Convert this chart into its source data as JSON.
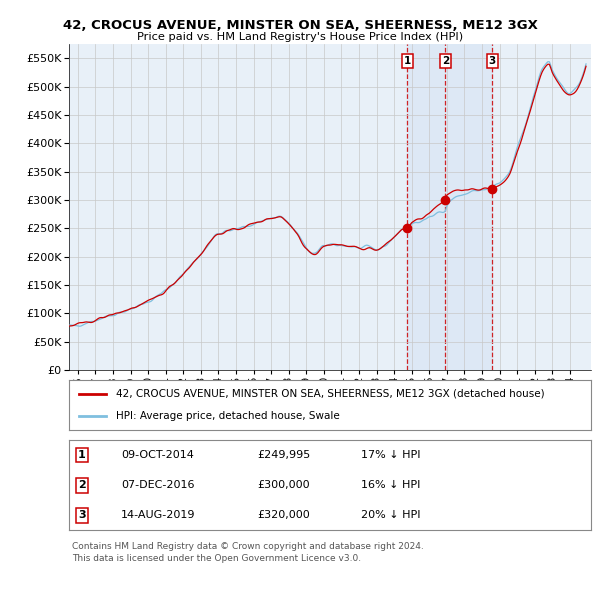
{
  "title": "42, CROCUS AVENUE, MINSTER ON SEA, SHEERNESS, ME12 3GX",
  "subtitle": "Price paid vs. HM Land Registry's House Price Index (HPI)",
  "legend_line1": "42, CROCUS AVENUE, MINSTER ON SEA, SHEERNESS, ME12 3GX (detached house)",
  "legend_line2": "HPI: Average price, detached house, Swale",
  "footer": "Contains HM Land Registry data © Crown copyright and database right 2024.\nThis data is licensed under the Open Government Licence v3.0.",
  "transactions": [
    {
      "num": 1,
      "date": "09-OCT-2014",
      "price": "£249,995",
      "price_val": 249995,
      "pct": "17% ↓ HPI",
      "year": 2014.75
    },
    {
      "num": 2,
      "date": "07-DEC-2016",
      "price": "£300,000",
      "price_val": 300000,
      "pct": "16% ↓ HPI",
      "year": 2016.92
    },
    {
      "num": 3,
      "date": "14-AUG-2019",
      "price": "£320,000",
      "price_val": 320000,
      "pct": "20% ↓ HPI",
      "year": 2019.58
    }
  ],
  "ylim": [
    0,
    575000
  ],
  "yticks": [
    0,
    50000,
    100000,
    150000,
    200000,
    250000,
    300000,
    350000,
    400000,
    450000,
    500000,
    550000
  ],
  "hpi_color": "#7fbfdf",
  "price_color": "#cc0000",
  "dot_color": "#cc0000",
  "vline_color": "#cc0000",
  "background_color": "#e8f0f8",
  "shade_color": "#dce8f5",
  "grid_color": "#c8c8c8",
  "xmin": 1995.5,
  "xmax": 2025.2,
  "xticks": [
    1996,
    1997,
    1998,
    1999,
    2000,
    2001,
    2002,
    2003,
    2004,
    2005,
    2006,
    2007,
    2008,
    2009,
    2010,
    2011,
    2012,
    2013,
    2014,
    2015,
    2016,
    2017,
    2018,
    2019,
    2020,
    2021,
    2022,
    2023,
    2024
  ]
}
